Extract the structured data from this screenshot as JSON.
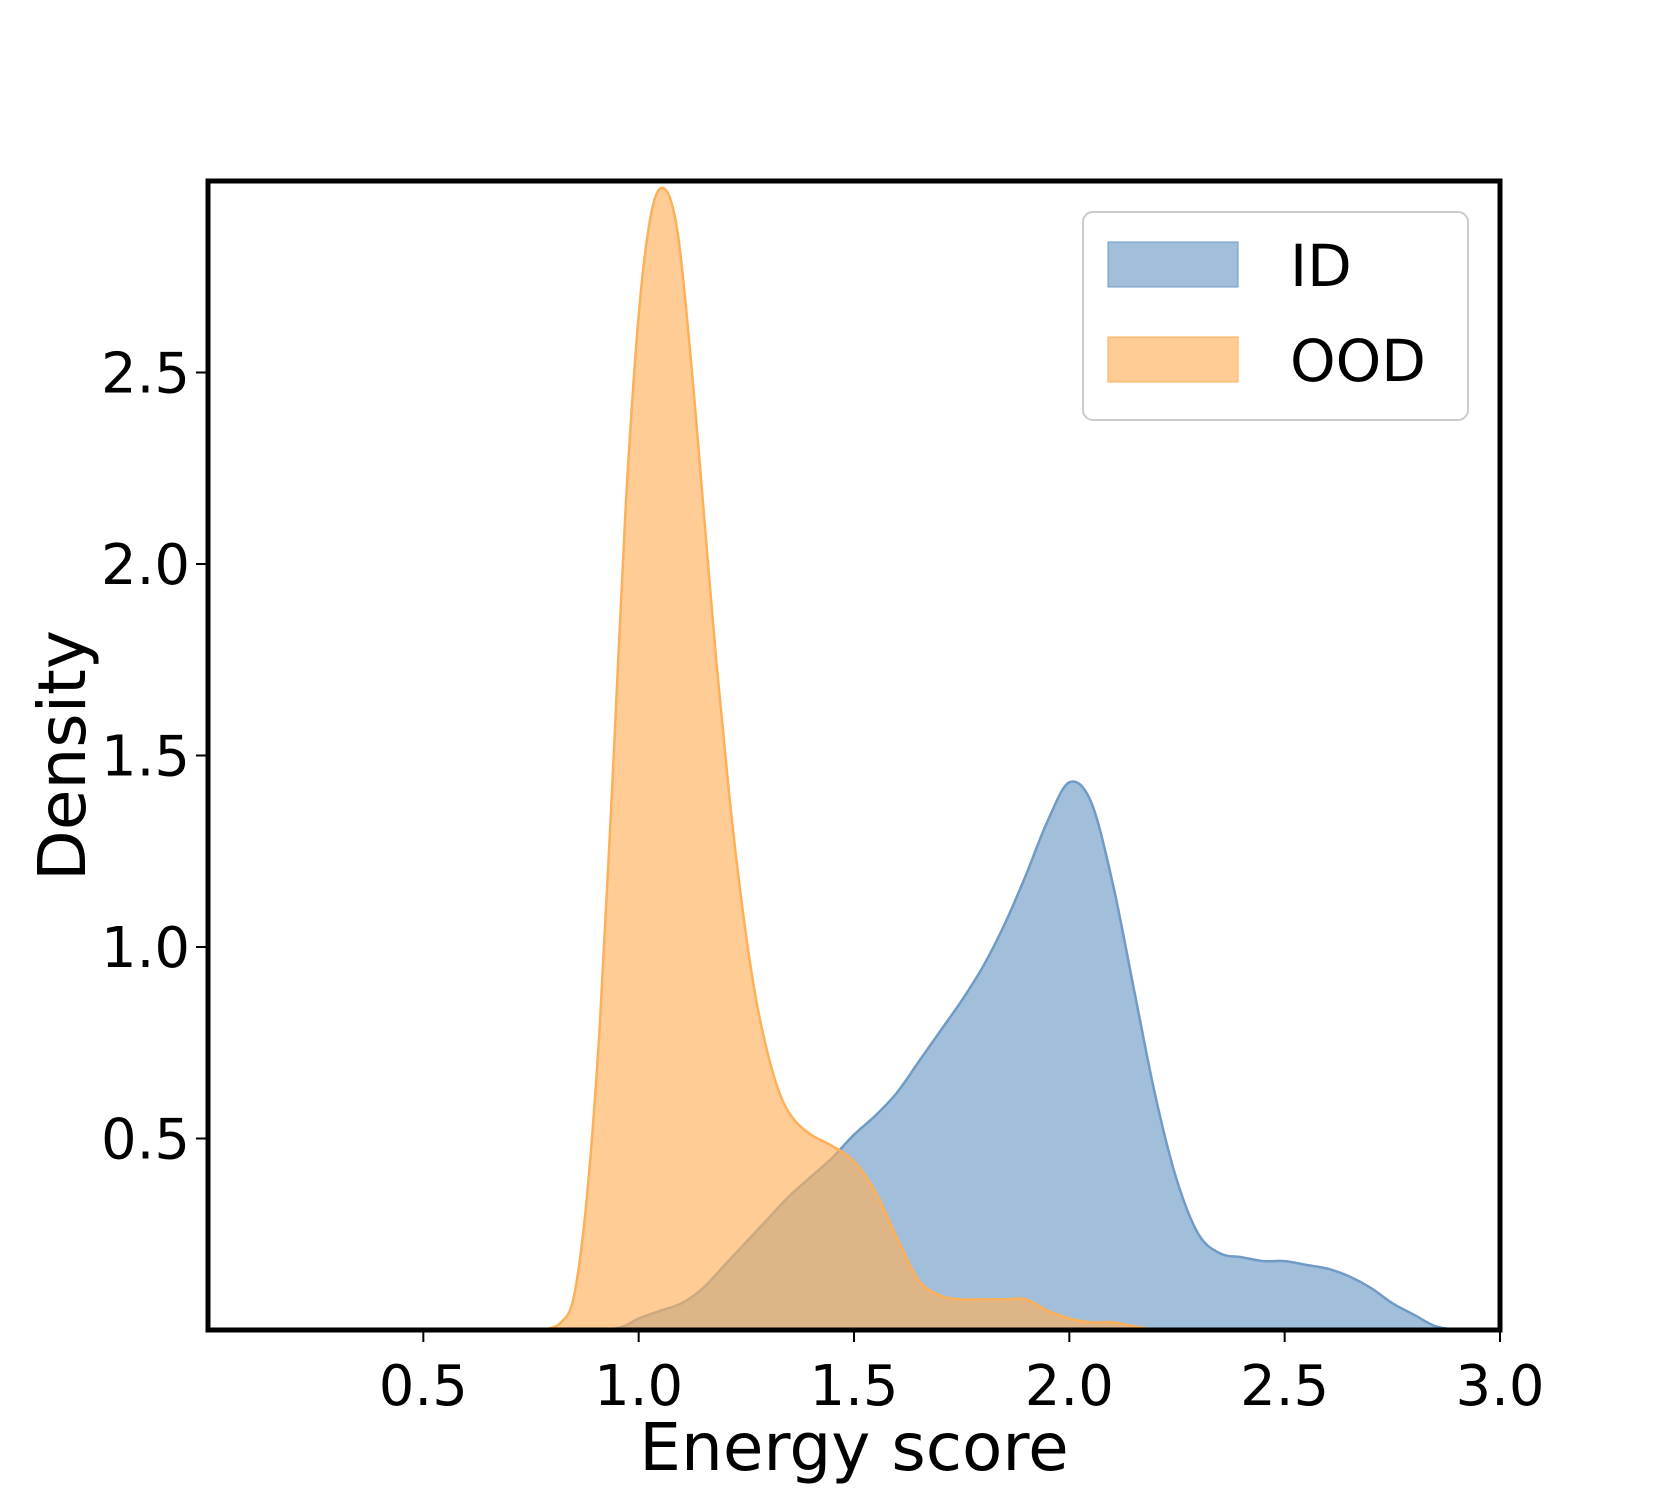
{
  "chart_data": {
    "type": "area",
    "title": "",
    "xlabel": "Energy score",
    "ylabel": "Density",
    "xlim": [
      0.0,
      3.0
    ],
    "ylim": [
      0.0,
      3.0
    ],
    "xticks": [
      "0.5",
      "1.0",
      "1.5",
      "2.0",
      "2.5",
      "3.0"
    ],
    "yticks": [
      "0.5",
      "1.0",
      "1.5",
      "2.0",
      "2.5"
    ],
    "grid": false,
    "legend_position": "top-right",
    "series": [
      {
        "name": "ID",
        "color": "#6f9bc6",
        "points": [
          [
            0.85,
            0.0
          ],
          [
            0.95,
            0.005
          ],
          [
            1.0,
            0.03
          ],
          [
            1.05,
            0.05
          ],
          [
            1.1,
            0.07
          ],
          [
            1.15,
            0.11
          ],
          [
            1.2,
            0.17
          ],
          [
            1.25,
            0.23
          ],
          [
            1.3,
            0.29
          ],
          [
            1.35,
            0.35
          ],
          [
            1.4,
            0.4
          ],
          [
            1.45,
            0.45
          ],
          [
            1.5,
            0.51
          ],
          [
            1.55,
            0.56
          ],
          [
            1.6,
            0.62
          ],
          [
            1.65,
            0.7
          ],
          [
            1.7,
            0.78
          ],
          [
            1.75,
            0.86
          ],
          [
            1.8,
            0.95
          ],
          [
            1.85,
            1.06
          ],
          [
            1.9,
            1.19
          ],
          [
            1.95,
            1.33
          ],
          [
            2.0,
            1.43
          ],
          [
            2.05,
            1.38
          ],
          [
            2.1,
            1.17
          ],
          [
            2.15,
            0.89
          ],
          [
            2.2,
            0.61
          ],
          [
            2.25,
            0.39
          ],
          [
            2.3,
            0.25
          ],
          [
            2.35,
            0.2
          ],
          [
            2.4,
            0.19
          ],
          [
            2.45,
            0.18
          ],
          [
            2.5,
            0.18
          ],
          [
            2.55,
            0.17
          ],
          [
            2.6,
            0.16
          ],
          [
            2.65,
            0.14
          ],
          [
            2.7,
            0.11
          ],
          [
            2.75,
            0.07
          ],
          [
            2.8,
            0.04
          ],
          [
            2.85,
            0.01
          ],
          [
            2.9,
            0.0
          ]
        ]
      },
      {
        "name": "OOD",
        "color": "#fdb05a",
        "points": [
          [
            0.78,
            0.0
          ],
          [
            0.82,
            0.02
          ],
          [
            0.85,
            0.09
          ],
          [
            0.88,
            0.35
          ],
          [
            0.91,
            0.8
          ],
          [
            0.94,
            1.45
          ],
          [
            0.97,
            2.15
          ],
          [
            1.0,
            2.65
          ],
          [
            1.03,
            2.92
          ],
          [
            1.06,
            2.98
          ],
          [
            1.09,
            2.87
          ],
          [
            1.12,
            2.55
          ],
          [
            1.15,
            2.15
          ],
          [
            1.18,
            1.75
          ],
          [
            1.21,
            1.4
          ],
          [
            1.24,
            1.11
          ],
          [
            1.27,
            0.88
          ],
          [
            1.3,
            0.72
          ],
          [
            1.33,
            0.61
          ],
          [
            1.36,
            0.55
          ],
          [
            1.4,
            0.51
          ],
          [
            1.45,
            0.48
          ],
          [
            1.5,
            0.44
          ],
          [
            1.55,
            0.36
          ],
          [
            1.6,
            0.24
          ],
          [
            1.65,
            0.13
          ],
          [
            1.7,
            0.09
          ],
          [
            1.75,
            0.08
          ],
          [
            1.8,
            0.08
          ],
          [
            1.85,
            0.08
          ],
          [
            1.9,
            0.08
          ],
          [
            1.95,
            0.05
          ],
          [
            2.0,
            0.03
          ],
          [
            2.05,
            0.02
          ],
          [
            2.1,
            0.02
          ],
          [
            2.15,
            0.01
          ],
          [
            2.2,
            0.0
          ]
        ]
      }
    ]
  }
}
